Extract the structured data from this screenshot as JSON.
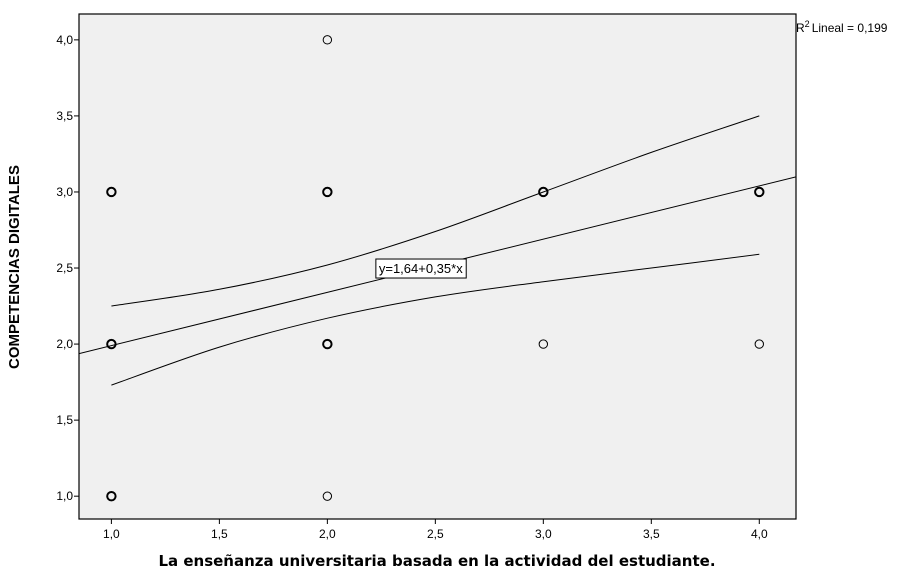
{
  "chart_data": {
    "type": "scatter",
    "xlabel": "La enseñanza universitaria basada en la actividad del estudiante.",
    "ylabel": "COMPETENCIAS DIGITALES",
    "xlim": [
      0.85,
      4.17
    ],
    "ylim": [
      0.85,
      4.17
    ],
    "x_ticks": [
      "1,0",
      "1,5",
      "2,0",
      "2,5",
      "3,0",
      "3,5",
      "4,0"
    ],
    "x_tick_values": [
      1.0,
      1.5,
      2.0,
      2.5,
      3.0,
      3.5,
      4.0
    ],
    "y_ticks": [
      "1,0",
      "1,5",
      "2,0",
      "2,5",
      "3,0",
      "3,5",
      "4,0"
    ],
    "y_tick_values": [
      1.0,
      1.5,
      2.0,
      2.5,
      3.0,
      3.5,
      4.0
    ],
    "points": [
      {
        "x": 1,
        "y": 1,
        "bold": true
      },
      {
        "x": 1,
        "y": 2,
        "bold": true
      },
      {
        "x": 1,
        "y": 3,
        "bold": true
      },
      {
        "x": 2,
        "y": 1,
        "bold": false
      },
      {
        "x": 2,
        "y": 2,
        "bold": true
      },
      {
        "x": 2,
        "y": 3,
        "bold": true
      },
      {
        "x": 2,
        "y": 4,
        "bold": false
      },
      {
        "x": 3,
        "y": 2,
        "bold": false
      },
      {
        "x": 3,
        "y": 3,
        "bold": true
      },
      {
        "x": 4,
        "y": 2,
        "bold": false
      },
      {
        "x": 4,
        "y": 3,
        "bold": true
      }
    ],
    "fit": {
      "intercept": 1.64,
      "slope": 0.35,
      "label": "y=1,64+0,35*x"
    },
    "confidence_upper": [
      [
        1.0,
        2.25
      ],
      [
        1.5,
        2.36
      ],
      [
        2.0,
        2.52
      ],
      [
        2.5,
        2.74
      ],
      [
        3.0,
        3.0
      ],
      [
        3.5,
        3.26
      ],
      [
        4.0,
        3.5
      ]
    ],
    "confidence_lower": [
      [
        1.0,
        1.73
      ],
      [
        1.5,
        1.98
      ],
      [
        2.0,
        2.17
      ],
      [
        2.5,
        2.31
      ],
      [
        3.0,
        2.41
      ],
      [
        3.5,
        2.5
      ],
      [
        4.0,
        2.59
      ]
    ],
    "r2_label": "Lineal = 0,199",
    "r2_prefix": "R",
    "r2_sup": "2",
    "grid": false,
    "plot_background": "#f0f0f0"
  }
}
